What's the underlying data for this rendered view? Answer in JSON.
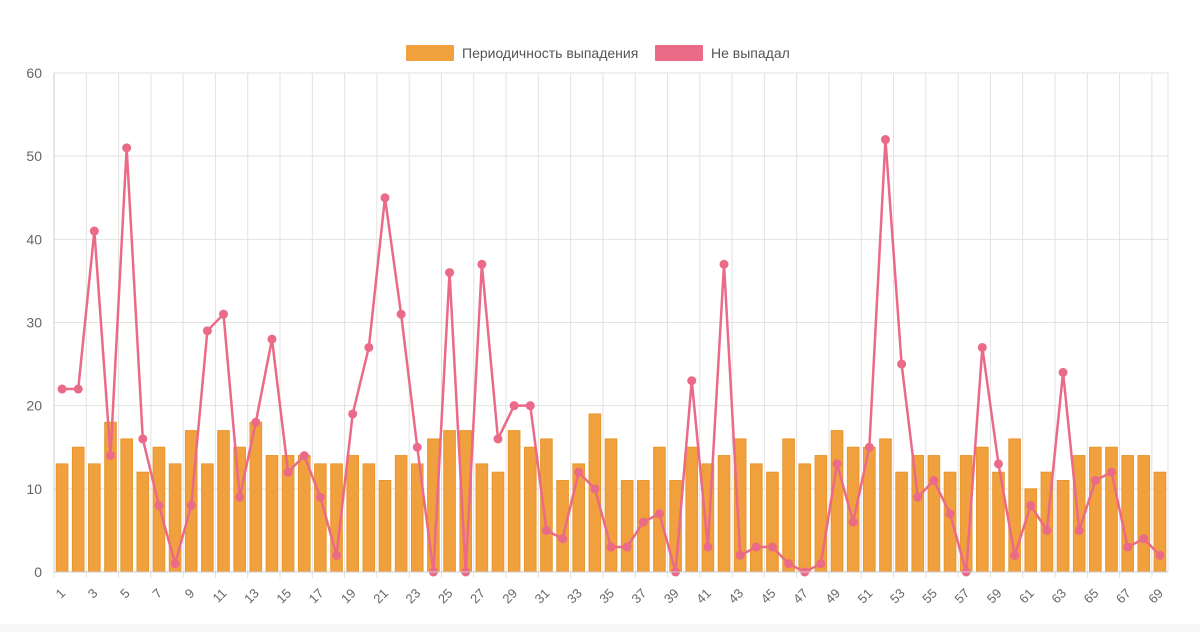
{
  "chart_data": {
    "type": "bar",
    "legend_position": "top-center",
    "grid": true,
    "ylim": [
      0,
      60
    ],
    "y_ticks": [
      0,
      10,
      20,
      30,
      40,
      50,
      60
    ],
    "x_tick_step": 2,
    "categories": [
      1,
      2,
      3,
      4,
      5,
      6,
      7,
      8,
      9,
      10,
      11,
      12,
      13,
      14,
      15,
      16,
      17,
      18,
      19,
      20,
      21,
      22,
      23,
      24,
      25,
      26,
      27,
      28,
      29,
      30,
      31,
      32,
      33,
      34,
      35,
      36,
      37,
      38,
      39,
      40,
      41,
      42,
      43,
      44,
      45,
      46,
      47,
      48,
      49,
      50,
      51,
      52,
      53,
      54,
      55,
      56,
      57,
      58,
      59,
      60,
      61,
      62,
      63,
      64,
      65,
      66,
      67,
      68,
      69
    ],
    "series": [
      {
        "name": "Периодичность выпадения",
        "type": "bar",
        "color": "#f0a03c",
        "values": [
          13,
          15,
          13,
          18,
          16,
          12,
          15,
          13,
          17,
          13,
          17,
          15,
          18,
          14,
          14,
          14,
          13,
          13,
          14,
          13,
          11,
          14,
          13,
          16,
          17,
          17,
          13,
          12,
          17,
          15,
          16,
          11,
          13,
          19,
          16,
          11,
          11,
          15,
          11,
          15,
          13,
          14,
          16,
          13,
          12,
          16,
          13,
          14,
          17,
          15,
          15,
          16,
          12,
          14,
          14,
          12,
          14,
          15,
          12,
          16,
          10,
          12,
          11,
          14,
          15,
          15,
          14,
          14,
          12
        ]
      },
      {
        "name": "Не выпадал",
        "type": "line",
        "color": "#ea6a87",
        "values": [
          22,
          22,
          41,
          14,
          51,
          16,
          8,
          1,
          8,
          29,
          31,
          9,
          18,
          28,
          12,
          14,
          9,
          2,
          19,
          27,
          45,
          31,
          15,
          0,
          36,
          0,
          37,
          16,
          20,
          20,
          5,
          4,
          12,
          10,
          3,
          3,
          6,
          7,
          0,
          23,
          3,
          37,
          2,
          3,
          3,
          1,
          0,
          1,
          13,
          6,
          15,
          52,
          25,
          9,
          11,
          7,
          0,
          27,
          13,
          2,
          8,
          5,
          24,
          5,
          11,
          12,
          3,
          4,
          2
        ]
      }
    ]
  }
}
